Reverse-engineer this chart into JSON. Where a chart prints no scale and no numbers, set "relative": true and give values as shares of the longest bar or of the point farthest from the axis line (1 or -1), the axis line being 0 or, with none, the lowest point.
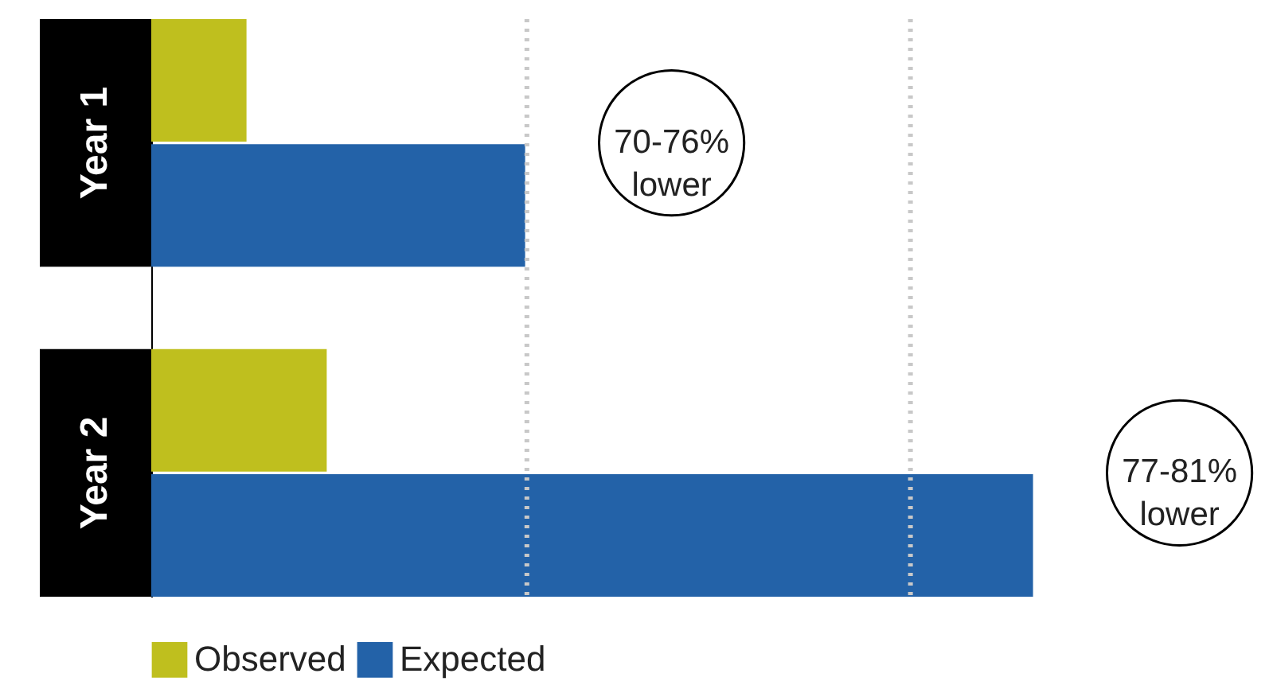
{
  "chart_data": {
    "type": "bar",
    "orientation": "horizontal",
    "relative": true,
    "categories": [
      "Year 1",
      "Year 2"
    ],
    "series": [
      {
        "name": "Observed",
        "color": "#bfbf1e",
        "values": [
          0.108,
          0.199
        ]
      },
      {
        "name": "Expected",
        "color": "#2362a8",
        "values": [
          0.424,
          1
        ]
      }
    ],
    "ref_lines": [
      {
        "axis": "x",
        "value": 0.426,
        "label": null,
        "color": "#c8c8c8",
        "line_style": "dotted"
      },
      {
        "axis": "x",
        "value": 0.861,
        "label": null,
        "color": "#c8c8c8",
        "line_style": "dotted"
      }
    ],
    "annotations": [
      "70-76%\nlower",
      "77-81%\nlower"
    ],
    "legend": "bottom"
  }
}
